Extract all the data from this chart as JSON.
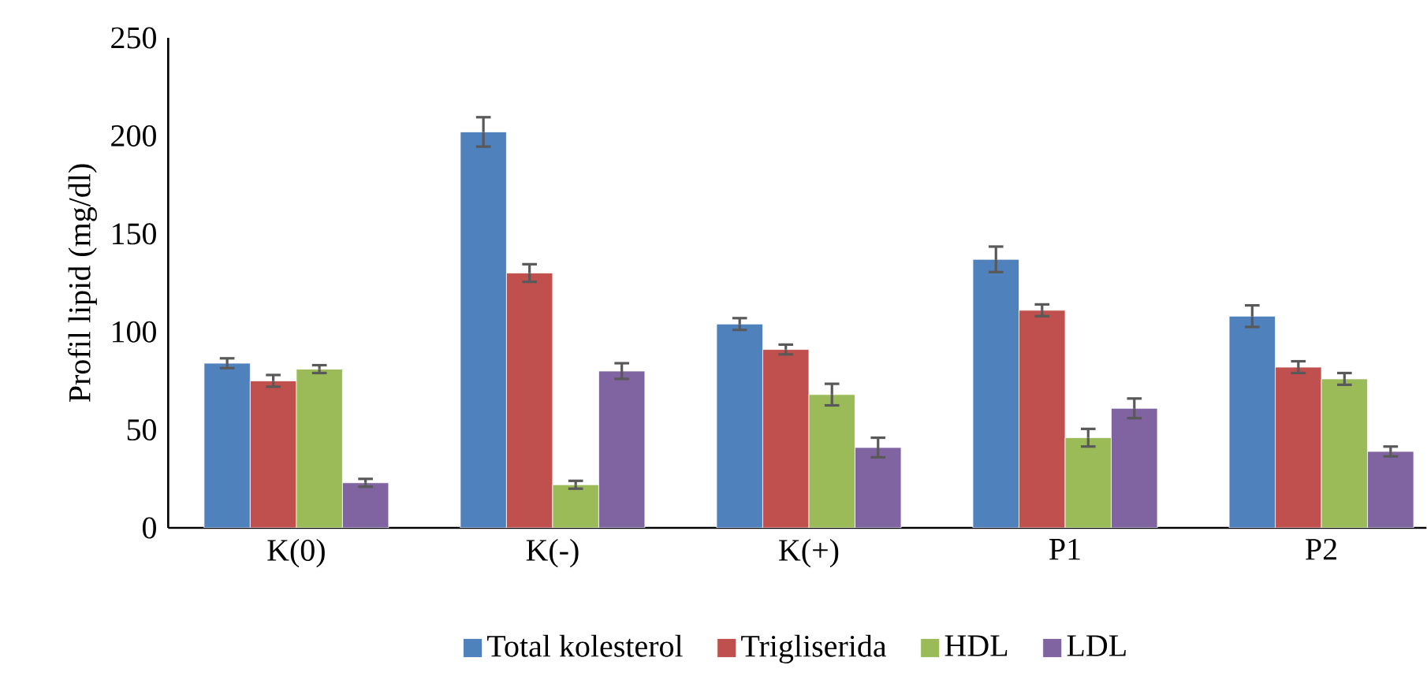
{
  "chart_data": {
    "type": "bar",
    "ylabel": "Profil lipid (mg/dl)",
    "categories": [
      "K(0)",
      "K(-)",
      "K(+)",
      "P1",
      "P2"
    ],
    "ylim": [
      0,
      250
    ],
    "yticks": [
      0,
      50,
      100,
      150,
      200,
      250
    ],
    "grid": false,
    "legend": "bottom",
    "series": [
      {
        "name": "Total kolesterol",
        "color": "#4f81bd",
        "values": [
          84,
          202,
          104,
          137,
          108
        ],
        "errors": [
          2.5,
          7.5,
          3,
          6.5,
          5.5
        ]
      },
      {
        "name": "Trigliserida",
        "color": "#c0504d",
        "values": [
          75,
          130,
          91,
          111,
          82
        ],
        "errors": [
          3,
          4.5,
          2.5,
          3,
          3
        ]
      },
      {
        "name": "HDL",
        "color": "#9bbb59",
        "values": [
          81,
          22,
          68,
          46,
          76
        ],
        "errors": [
          2,
          2,
          5.5,
          4.5,
          3
        ]
      },
      {
        "name": "LDL",
        "color": "#8064a2",
        "values": [
          23,
          80,
          41,
          61,
          39
        ],
        "errors": [
          2,
          4,
          5,
          5,
          2.5
        ]
      }
    ]
  }
}
